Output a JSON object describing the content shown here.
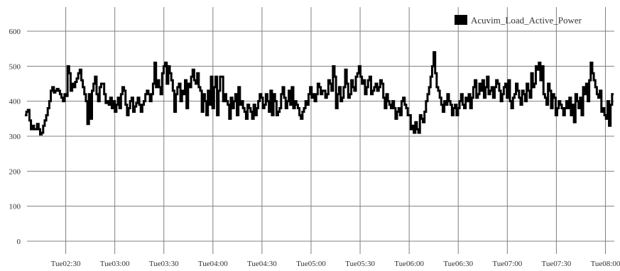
{
  "chart_data": {
    "type": "line",
    "x_tick_labels": [
      "Tue02:30",
      "Tue03:00",
      "Tue03:30",
      "Tue04:00",
      "Tue04:30",
      "Tue05:00",
      "Tue05:30",
      "Tue06:00",
      "Tue06:30",
      "Tue07:00",
      "Tue07:30",
      "Tue08:00"
    ],
    "y_tick_labels": [
      "0",
      "100",
      "200",
      "300",
      "400",
      "500",
      "600"
    ],
    "ylim": [
      -25,
      640
    ],
    "x_start": "02:05",
    "x_end": "08:05",
    "x_step_minutes": 1,
    "grid": true,
    "legend_position": "top-right",
    "line_style": "step",
    "series": [
      {
        "name": "Acuvim_Load_Active_Power",
        "color": "#000000",
        "values": [
          360,
          370,
          375,
          345,
          320,
          330,
          320,
          320,
          335,
          320,
          305,
          310,
          330,
          345,
          360,
          380,
          400,
          430,
          440,
          425,
          430,
          435,
          430,
          420,
          410,
          400,
          420,
          415,
          500,
          480,
          430,
          450,
          440,
          455,
          465,
          480,
          490,
          460,
          440,
          420,
          400,
          335,
          420,
          350,
          430,
          450,
          470,
          420,
          400,
          440,
          450,
          450,
          420,
          395,
          400,
          390,
          410,
          380,
          400,
          370,
          390,
          410,
          380,
          420,
          440,
          430,
          390,
          360,
          380,
          400,
          410,
          370,
          385,
          395,
          410,
          390,
          370,
          390,
          400,
          420,
          430,
          420,
          400,
          420,
          450,
          510,
          440,
          460,
          440,
          420,
          480,
          500,
          510,
          450,
          500,
          480,
          460,
          430,
          370,
          420,
          440,
          450,
          400,
          430,
          420,
          460,
          380,
          450,
          440,
          470,
          490,
          460,
          450,
          480,
          440,
          430,
          370,
          420,
          400,
          360,
          430,
          390,
          470,
          380,
          440,
          470,
          360,
          430,
          470,
          470,
          400,
          420,
          400,
          390,
          350,
          410,
          380,
          400,
          420,
          360,
          440,
          390,
          400,
          380,
          370,
          350,
          390,
          380,
          370,
          350,
          390,
          360,
          380,
          400,
          420,
          410,
          380,
          390,
          420,
          400,
          370,
          430,
          360,
          420,
          400,
          360,
          370,
          380,
          420,
          440,
          410,
          380,
          400,
          430,
          390,
          440,
          380,
          400,
          390,
          380,
          360,
          350,
          370,
          380,
          400,
          390,
          420,
          440,
          410,
          420,
          400,
          420,
          450,
          440,
          420,
          430,
          430,
          410,
          420,
          460,
          450,
          430,
          500,
          470,
          380,
          420,
          440,
          400,
          410,
          440,
          490,
          450,
          410,
          420,
          460,
          440,
          430,
          470,
          480,
          500,
          470,
          450,
          460,
          420,
          440,
          460,
          470,
          420,
          430,
          440,
          450,
          430,
          440,
          460,
          450,
          410,
          380,
          420,
          400,
          390,
          380,
          400,
          380,
          350,
          370,
          380,
          360,
          400,
          410,
          390,
          380,
          360,
          360,
          320,
          330,
          310,
          340,
          320,
          310,
          360,
          350,
          340,
          370,
          400,
          420,
          440,
          470,
          500,
          540,
          480,
          440,
          430,
          410,
          390,
          370,
          400,
          390,
          420,
          400,
          390,
          360,
          380,
          390,
          360,
          380,
          400,
          420,
          390,
          380,
          410,
          400,
          420,
          380,
          410,
          440,
          460,
          410,
          420,
          450,
          430,
          460,
          410,
          440,
          470,
          420,
          430,
          440,
          410,
          440,
          460,
          450,
          430,
          400,
          420,
          440,
          450,
          410,
          460,
          400,
          380,
          410,
          420,
          450,
          430,
          410,
          390,
          430,
          420,
          400,
          450,
          430,
          410,
          480,
          440,
          450,
          500,
          490,
          510,
          460,
          500,
          420,
          410,
          390,
          450,
          430,
          380,
          420,
          410,
          360,
          380,
          400,
          390,
          380,
          360,
          380,
          400,
          380,
          410,
          360,
          390,
          340,
          420,
          400,
          380,
          410,
          360,
          440,
          420,
          450,
          400,
          460,
          510,
          480,
          460,
          440,
          420,
          410,
          430,
          370,
          380,
          360,
          350,
          400,
          330,
          390,
          420
        ]
      }
    ]
  }
}
